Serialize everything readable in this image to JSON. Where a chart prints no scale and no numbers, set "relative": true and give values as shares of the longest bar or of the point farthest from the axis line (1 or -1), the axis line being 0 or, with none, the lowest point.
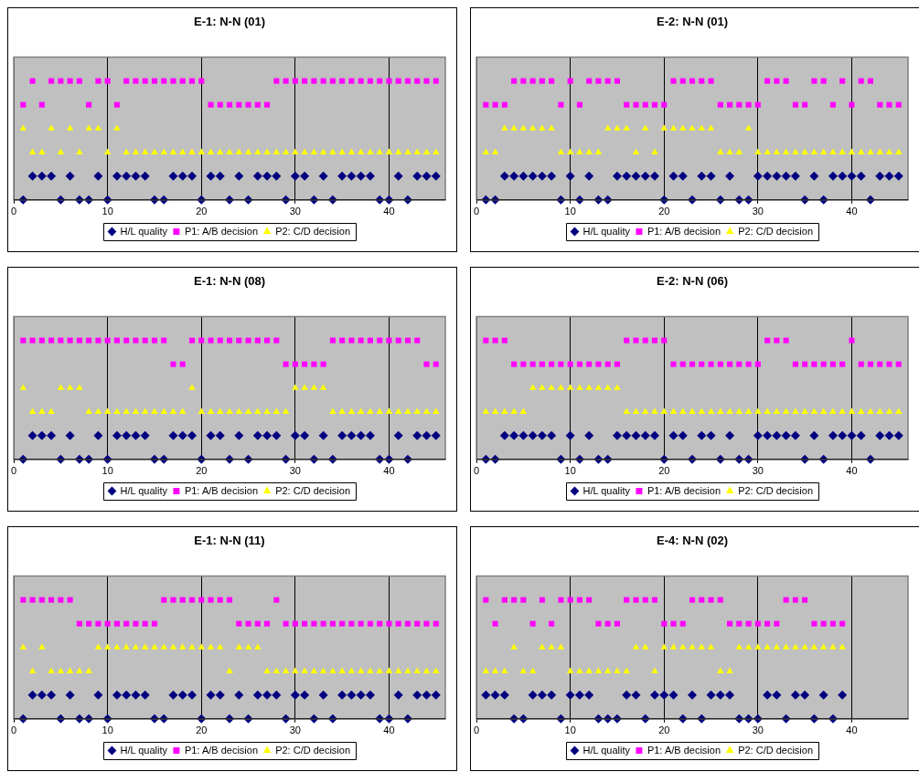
{
  "chart_data": [
    {
      "type": "scatter",
      "title": "E-1: N-N (01)",
      "relative": true,
      "grid": "x",
      "legend": "bottom",
      "xlim": [
        0,
        46
      ],
      "xticks": [
        0,
        10,
        20,
        30,
        40
      ],
      "x": [
        1,
        2,
        3,
        4,
        5,
        6,
        7,
        8,
        9,
        10,
        11,
        12,
        13,
        14,
        15,
        16,
        17,
        18,
        19,
        20,
        21,
        22,
        23,
        24,
        25,
        26,
        27,
        28,
        29,
        30,
        31,
        32,
        33,
        34,
        35,
        36,
        37,
        38,
        39,
        40,
        41,
        42,
        43,
        44,
        45
      ],
      "series": [
        {
          "name": "H/L quality",
          "color": "#000080",
          "marker": "diamond",
          "values": [
            0,
            0.2,
            0.2,
            0.2,
            0,
            0.2,
            0,
            0,
            0.2,
            0,
            0.2,
            0.2,
            0.2,
            0.2,
            0,
            0,
            0.2,
            0.2,
            0.2,
            0,
            0.2,
            0.2,
            0,
            0.2,
            0,
            0.2,
            0.2,
            0.2,
            0,
            0.2,
            0.2,
            0,
            0.2,
            0,
            0.2,
            0.2,
            0.2,
            0.2,
            0,
            0,
            0.2,
            0,
            0.2,
            0.2,
            0.2
          ]
        },
        {
          "name": "P1: A/B decision",
          "color": "#ff00ff",
          "marker": "square",
          "values": [
            0.8,
            1,
            0.8,
            1,
            1,
            1,
            1,
            0.8,
            1,
            1,
            0.8,
            1,
            1,
            1,
            1,
            1,
            1,
            1,
            1,
            1,
            0.8,
            0.8,
            0.8,
            0.8,
            0.8,
            0.8,
            0.8,
            1,
            1,
            1,
            1,
            1,
            1,
            1,
            1,
            1,
            1,
            1,
            1,
            1,
            1,
            1,
            1,
            1,
            1
          ]
        },
        {
          "name": "P2: C/D decision",
          "color": "#ffff00",
          "marker": "triangle",
          "values": [
            0.6,
            0.4,
            0.4,
            0.6,
            0.4,
            0.6,
            0.4,
            0.6,
            0.6,
            0.4,
            0.6,
            0.4,
            0.4,
            0.4,
            0.4,
            0.4,
            0.4,
            0.4,
            0.4,
            0.4,
            0.4,
            0.4,
            0.4,
            0.4,
            0.4,
            0.4,
            0.4,
            0.4,
            0.4,
            0.4,
            0.4,
            0.4,
            0.4,
            0.4,
            0.4,
            0.4,
            0.4,
            0.4,
            0.4,
            0.4,
            0.4,
            0.4,
            0.4,
            0.4,
            0.4
          ]
        }
      ]
    },
    {
      "type": "scatter",
      "title": "E-2: N-N (01)",
      "relative": true,
      "grid": "x",
      "legend": "bottom",
      "xlim": [
        0,
        46
      ],
      "xticks": [
        0,
        10,
        20,
        30,
        40
      ],
      "x": [
        1,
        2,
        3,
        4,
        5,
        6,
        7,
        8,
        9,
        10,
        11,
        12,
        13,
        14,
        15,
        16,
        17,
        18,
        19,
        20,
        21,
        22,
        23,
        24,
        25,
        26,
        27,
        28,
        29,
        30,
        31,
        32,
        33,
        34,
        35,
        36,
        37,
        38,
        39,
        40,
        41,
        42,
        43,
        44,
        45
      ],
      "series": [
        {
          "name": "H/L quality",
          "color": "#000080",
          "marker": "diamond",
          "values": [
            0,
            0,
            0.2,
            0.2,
            0.2,
            0.2,
            0.2,
            0.2,
            0,
            0.2,
            0,
            0.2,
            0,
            0,
            0.2,
            0.2,
            0.2,
            0.2,
            0.2,
            0,
            0.2,
            0.2,
            0,
            0.2,
            0.2,
            0,
            0.2,
            0,
            0,
            0.2,
            0.2,
            0.2,
            0.2,
            0.2,
            0,
            0.2,
            0,
            0.2,
            0.2,
            0.2,
            0.2,
            0,
            0.2,
            0.2,
            0.2
          ]
        },
        {
          "name": "P1: A/B decision",
          "color": "#ff00ff",
          "marker": "square",
          "values": [
            0.8,
            0.8,
            0.8,
            1,
            1,
            1,
            1,
            1,
            0.8,
            1,
            0.8,
            1,
            1,
            1,
            1,
            0.8,
            0.8,
            0.8,
            0.8,
            0.8,
            1,
            1,
            1,
            1,
            1,
            0.8,
            0.8,
            0.8,
            0.8,
            0.8,
            1,
            1,
            1,
            0.8,
            0.8,
            1,
            1,
            0.8,
            1,
            0.8,
            1,
            1,
            0.8,
            0.8,
            0.8
          ]
        },
        {
          "name": "P2: C/D decision",
          "color": "#ffff00",
          "marker": "triangle",
          "values": [
            0.4,
            0.4,
            0.6,
            0.6,
            0.6,
            0.6,
            0.6,
            0.6,
            0.4,
            0.4,
            0.4,
            0.4,
            0.4,
            0.6,
            0.6,
            0.6,
            0.4,
            0.6,
            0.4,
            0.6,
            0.6,
            0.6,
            0.6,
            0.6,
            0.6,
            0.4,
            0.4,
            0.4,
            0.6,
            0.4,
            0.4,
            0.4,
            0.4,
            0.4,
            0.4,
            0.4,
            0.4,
            0.4,
            0.4,
            0.4,
            0.4,
            0.4,
            0.4,
            0.4,
            0.4
          ]
        }
      ]
    },
    {
      "type": "scatter",
      "title": "E-1: N-N (08)",
      "relative": true,
      "grid": "x",
      "legend": "bottom",
      "xlim": [
        0,
        46
      ],
      "xticks": [
        0,
        10,
        20,
        30,
        40
      ],
      "x": [
        1,
        2,
        3,
        4,
        5,
        6,
        7,
        8,
        9,
        10,
        11,
        12,
        13,
        14,
        15,
        16,
        17,
        18,
        19,
        20,
        21,
        22,
        23,
        24,
        25,
        26,
        27,
        28,
        29,
        30,
        31,
        32,
        33,
        34,
        35,
        36,
        37,
        38,
        39,
        40,
        41,
        42,
        43,
        44,
        45
      ],
      "series": [
        {
          "name": "H/L quality",
          "color": "#000080",
          "marker": "diamond",
          "values": [
            0,
            0.2,
            0.2,
            0.2,
            0,
            0.2,
            0,
            0,
            0.2,
            0,
            0.2,
            0.2,
            0.2,
            0.2,
            0,
            0,
            0.2,
            0.2,
            0.2,
            0,
            0.2,
            0.2,
            0,
            0.2,
            0,
            0.2,
            0.2,
            0.2,
            0,
            0.2,
            0.2,
            0,
            0.2,
            0,
            0.2,
            0.2,
            0.2,
            0.2,
            0,
            0,
            0.2,
            0,
            0.2,
            0.2,
            0.2
          ]
        },
        {
          "name": "P1: A/B decision",
          "color": "#ff00ff",
          "marker": "square",
          "values": [
            1,
            1,
            1,
            1,
            1,
            1,
            1,
            1,
            1,
            1,
            1,
            1,
            1,
            1,
            1,
            1,
            0.8,
            0.8,
            1,
            1,
            1,
            1,
            1,
            1,
            1,
            1,
            1,
            1,
            0.8,
            0.8,
            0.8,
            0.8,
            0.8,
            1,
            1,
            1,
            1,
            1,
            1,
            1,
            1,
            1,
            1,
            0.8,
            0.8
          ]
        },
        {
          "name": "P2: C/D decision",
          "color": "#ffff00",
          "marker": "triangle",
          "values": [
            0.6,
            0.4,
            0.4,
            0.4,
            0.6,
            0.6,
            0.6,
            0.4,
            0.4,
            0.4,
            0.4,
            0.4,
            0.4,
            0.4,
            0.4,
            0.4,
            0.4,
            0.4,
            0.6,
            0.4,
            0.4,
            0.4,
            0.4,
            0.4,
            0.4,
            0.4,
            0.4,
            0.4,
            0.4,
            0.6,
            0.6,
            0.6,
            0.6,
            0.4,
            0.4,
            0.4,
            0.4,
            0.4,
            0.4,
            0.4,
            0.4,
            0.4,
            0.4,
            0.4,
            0.4
          ]
        }
      ]
    },
    {
      "type": "scatter",
      "title": "E-2: N-N (06)",
      "relative": true,
      "grid": "x",
      "legend": "bottom",
      "xlim": [
        0,
        46
      ],
      "xticks": [
        0,
        10,
        20,
        30,
        40
      ],
      "x": [
        1,
        2,
        3,
        4,
        5,
        6,
        7,
        8,
        9,
        10,
        11,
        12,
        13,
        14,
        15,
        16,
        17,
        18,
        19,
        20,
        21,
        22,
        23,
        24,
        25,
        26,
        27,
        28,
        29,
        30,
        31,
        32,
        33,
        34,
        35,
        36,
        37,
        38,
        39,
        40,
        41,
        42,
        43,
        44,
        45
      ],
      "series": [
        {
          "name": "H/L quality",
          "color": "#000080",
          "marker": "diamond",
          "values": [
            0,
            0,
            0.2,
            0.2,
            0.2,
            0.2,
            0.2,
            0.2,
            0,
            0.2,
            0,
            0.2,
            0,
            0,
            0.2,
            0.2,
            0.2,
            0.2,
            0.2,
            0,
            0.2,
            0.2,
            0,
            0.2,
            0.2,
            0,
            0.2,
            0,
            0,
            0.2,
            0.2,
            0.2,
            0.2,
            0.2,
            0,
            0.2,
            0,
            0.2,
            0.2,
            0.2,
            0.2,
            0,
            0.2,
            0.2,
            0.2
          ]
        },
        {
          "name": "P1: A/B decision",
          "color": "#ff00ff",
          "marker": "square",
          "values": [
            1,
            1,
            1,
            0.8,
            0.8,
            0.8,
            0.8,
            0.8,
            0.8,
            0.8,
            0.8,
            0.8,
            0.8,
            0.8,
            0.8,
            1,
            1,
            1,
            1,
            1,
            0.8,
            0.8,
            0.8,
            0.8,
            0.8,
            0.8,
            0.8,
            0.8,
            0.8,
            0.8,
            1,
            1,
            1,
            0.8,
            0.8,
            0.8,
            0.8,
            0.8,
            0.8,
            1,
            0.8,
            0.8,
            0.8,
            0.8,
            0.8
          ]
        },
        {
          "name": "P2: C/D decision",
          "color": "#ffff00",
          "marker": "triangle",
          "values": [
            0.4,
            0.4,
            0.4,
            0.4,
            0.4,
            0.6,
            0.6,
            0.6,
            0.6,
            0.6,
            0.6,
            0.6,
            0.6,
            0.6,
            0.6,
            0.4,
            0.4,
            0.4,
            0.4,
            0.4,
            0.4,
            0.4,
            0.4,
            0.4,
            0.4,
            0.4,
            0.4,
            0.4,
            0.4,
            0.4,
            0.4,
            0.4,
            0.4,
            0.4,
            0.4,
            0.4,
            0.4,
            0.4,
            0.4,
            0.4,
            0.4,
            0.4,
            0.4,
            0.4,
            0.4
          ]
        }
      ]
    },
    {
      "type": "scatter",
      "title": "E-1: N-N (11)",
      "relative": true,
      "grid": "x",
      "legend": "bottom",
      "xlim": [
        0,
        46
      ],
      "xticks": [
        0,
        10,
        20,
        30,
        40
      ],
      "x": [
        1,
        2,
        3,
        4,
        5,
        6,
        7,
        8,
        9,
        10,
        11,
        12,
        13,
        14,
        15,
        16,
        17,
        18,
        19,
        20,
        21,
        22,
        23,
        24,
        25,
        26,
        27,
        28,
        29,
        30,
        31,
        32,
        33,
        34,
        35,
        36,
        37,
        38,
        39,
        40,
        41,
        42,
        43,
        44,
        45
      ],
      "series": [
        {
          "name": "H/L quality",
          "color": "#000080",
          "marker": "diamond",
          "values": [
            0,
            0.2,
            0.2,
            0.2,
            0,
            0.2,
            0,
            0,
            0.2,
            0,
            0.2,
            0.2,
            0.2,
            0.2,
            0,
            0,
            0.2,
            0.2,
            0.2,
            0,
            0.2,
            0.2,
            0,
            0.2,
            0,
            0.2,
            0.2,
            0.2,
            0,
            0.2,
            0.2,
            0,
            0.2,
            0,
            0.2,
            0.2,
            0.2,
            0.2,
            0,
            0,
            0.2,
            0,
            0.2,
            0.2,
            0.2
          ]
        },
        {
          "name": "P1: A/B decision",
          "color": "#ff00ff",
          "marker": "square",
          "values": [
            1,
            1,
            1,
            1,
            1,
            1,
            0.8,
            0.8,
            0.8,
            0.8,
            0.8,
            0.8,
            0.8,
            0.8,
            0.8,
            1,
            1,
            1,
            1,
            1,
            1,
            1,
            1,
            0.8,
            0.8,
            0.8,
            0.8,
            1,
            0.8,
            0.8,
            0.8,
            0.8,
            0.8,
            0.8,
            0.8,
            0.8,
            0.8,
            0.8,
            0.8,
            0.8,
            0.8,
            0.8,
            0.8,
            0.8,
            0.8
          ]
        },
        {
          "name": "P2: C/D decision",
          "color": "#ffff00",
          "marker": "triangle",
          "values": [
            0.6,
            0.4,
            0.6,
            0.4,
            0.4,
            0.4,
            0.4,
            0.4,
            0.6,
            0.6,
            0.6,
            0.6,
            0.6,
            0.6,
            0.6,
            0.6,
            0.6,
            0.6,
            0.6,
            0.6,
            0.6,
            0.6,
            0.4,
            0.6,
            0.6,
            0.6,
            0.4,
            0.4,
            0.4,
            0.4,
            0.4,
            0.4,
            0.4,
            0.4,
            0.4,
            0.4,
            0.4,
            0.4,
            0.4,
            0.4,
            0.4,
            0.4,
            0.4,
            0.4,
            0.4
          ]
        }
      ]
    },
    {
      "type": "scatter",
      "title": "E-4: N-N (02)",
      "relative": true,
      "grid": "x",
      "legend": "bottom",
      "xlim": [
        0,
        46
      ],
      "xticks": [
        0,
        10,
        20,
        30,
        40
      ],
      "x": [
        1,
        2,
        3,
        4,
        5,
        6,
        7,
        8,
        9,
        10,
        11,
        12,
        13,
        14,
        15,
        16,
        17,
        18,
        19,
        20,
        21,
        22,
        23,
        24,
        25,
        26,
        27,
        28,
        29,
        30,
        31,
        32,
        33,
        34,
        35,
        36,
        37,
        38,
        39
      ],
      "series": [
        {
          "name": "H/L quality",
          "color": "#000080",
          "marker": "diamond",
          "values": [
            0.2,
            0.2,
            0.2,
            0,
            0,
            0.2,
            0.2,
            0.2,
            0,
            0.2,
            0.2,
            0.2,
            0,
            0,
            0,
            0.2,
            0.2,
            0,
            0.2,
            0.2,
            0.2,
            0,
            0.2,
            0,
            0.2,
            0.2,
            0.2,
            0,
            0,
            0,
            0.2,
            0.2,
            0,
            0.2,
            0.2,
            0,
            0.2,
            0,
            0.2
          ]
        },
        {
          "name": "P1: A/B decision",
          "color": "#ff00ff",
          "marker": "square",
          "values": [
            1,
            0.8,
            1,
            1,
            1,
            0.8,
            1,
            0.8,
            1,
            1,
            1,
            1,
            0.8,
            0.8,
            0.8,
            1,
            1,
            1,
            1,
            0.8,
            0.8,
            0.8,
            1,
            1,
            1,
            1,
            0.8,
            0.8,
            0.8,
            0.8,
            0.8,
            0.8,
            1,
            1,
            1,
            0.8,
            0.8,
            0.8,
            0.8
          ]
        },
        {
          "name": "P2: C/D decision",
          "color": "#ffff00",
          "marker": "triangle",
          "values": [
            0.4,
            0.4,
            0.4,
            0.6,
            0.4,
            0.4,
            0.6,
            0.6,
            0.6,
            0.4,
            0.4,
            0.4,
            0.4,
            0.4,
            0.4,
            0.4,
            0.6,
            0.6,
            0.4,
            0.6,
            0.6,
            0.6,
            0.6,
            0.6,
            0.6,
            0.4,
            0.4,
            0.6,
            0.6,
            0.6,
            0.6,
            0.6,
            0.6,
            0.6,
            0.6,
            0.6,
            0.6,
            0.6,
            0.6
          ]
        }
      ]
    }
  ]
}
